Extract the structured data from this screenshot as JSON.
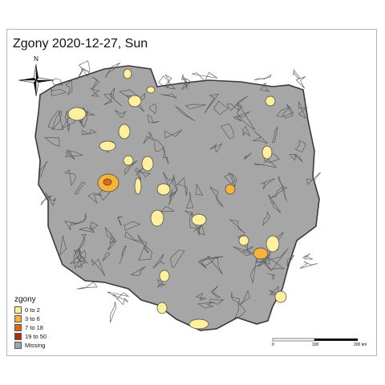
{
  "title": "Zgony 2020-12-27, Sun",
  "compass": {
    "label": "N",
    "icon": "north-arrow-compass-rose"
  },
  "legend": {
    "title": "zgony",
    "items": [
      {
        "label": "0 to 2",
        "color": "#ffef9e"
      },
      {
        "label": "3 to 6",
        "color": "#f7b43c"
      },
      {
        "label": "7 to 18",
        "color": "#e8621a"
      },
      {
        "label": "19 to 50",
        "color": "#a93008"
      },
      {
        "label": "Missing",
        "color": "#a6a6a6"
      }
    ]
  },
  "scale_bar": {
    "labels": [
      "0",
      "100",
      "200 km"
    ]
  },
  "colors": {
    "missing": "#a6a6a6",
    "border": "#3a3a3a",
    "low": "#ffef9e",
    "mid": "#f7b43c",
    "high": "#e8621a"
  }
}
